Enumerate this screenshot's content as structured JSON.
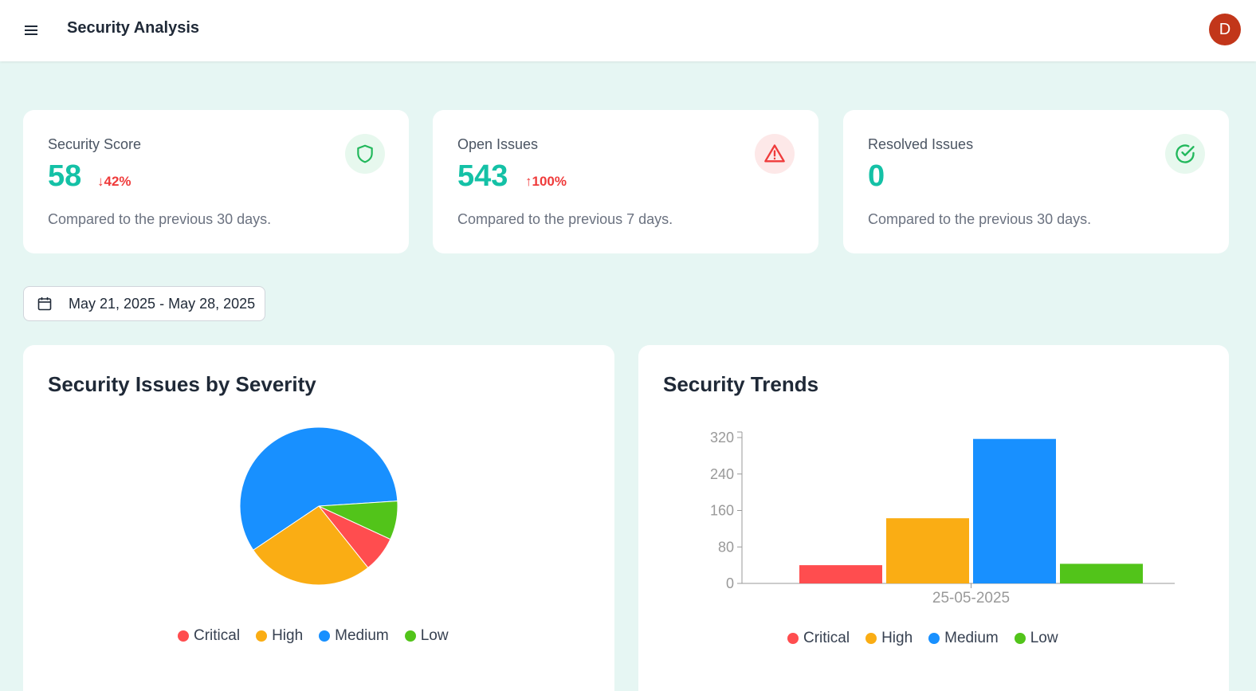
{
  "header": {
    "title": "Security Analysis",
    "avatar_initial": "D"
  },
  "stats": [
    {
      "label": "Security Score",
      "value": "58",
      "change": "↓42%",
      "note": "Compared to the previous 30 days.",
      "icon": "shield-icon"
    },
    {
      "label": "Open Issues",
      "value": "543",
      "change": "↑100%",
      "note": "Compared to the previous 7 days.",
      "icon": "warning-icon"
    },
    {
      "label": "Resolved Issues",
      "value": "0",
      "change": "",
      "note": "Compared to the previous 30 days.",
      "icon": "check-circle-icon"
    }
  ],
  "date_range": "May 21, 2025 - May 28, 2025",
  "severity_panel": {
    "title": "Security Issues by Severity"
  },
  "trends_panel": {
    "title": "Security Trends"
  },
  "colors": {
    "accent": "#14c1a6",
    "critical": "#ff4d4f",
    "high": "#faad14",
    "medium": "#1890ff",
    "low": "#52c41a",
    "negative": "#ef3b3b"
  },
  "legend": [
    "Critical",
    "High",
    "Medium",
    "Low"
  ],
  "chart_data": [
    {
      "type": "pie",
      "title": "Security Issues by Severity",
      "categories": [
        "Critical",
        "High",
        "Medium",
        "Low"
      ],
      "values": [
        40,
        143,
        317,
        43
      ],
      "legend": "bottom"
    },
    {
      "type": "bar",
      "title": "Security Trends",
      "categories": [
        "25-05-2025"
      ],
      "series": [
        {
          "name": "Critical",
          "values": [
            40
          ]
        },
        {
          "name": "High",
          "values": [
            143
          ]
        },
        {
          "name": "Medium",
          "values": [
            317
          ]
        },
        {
          "name": "Low",
          "values": [
            43
          ]
        }
      ],
      "ylim": [
        0,
        320
      ],
      "yticks": [
        0,
        80,
        160,
        240,
        320
      ],
      "grid": false,
      "legend": "bottom"
    }
  ]
}
